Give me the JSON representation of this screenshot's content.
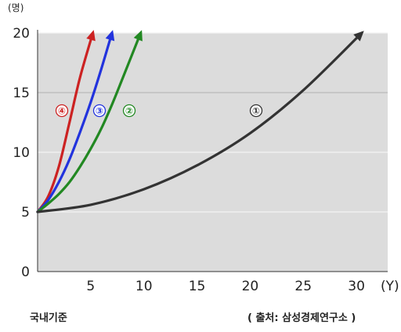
{
  "chart_data": {
    "type": "line",
    "ylabel": "(명)",
    "xlabel": "(Y)",
    "xlim": [
      0,
      30
    ],
    "ylim": [
      0,
      20
    ],
    "x_ticks": [
      "5",
      "10",
      "15",
      "20",
      "25",
      "30"
    ],
    "y_ticks": [
      "0",
      "5",
      "10",
      "15",
      "20"
    ],
    "grid": true,
    "series": [
      {
        "name": "④",
        "color": "#cc2222",
        "x": [
          0,
          1,
          2,
          3,
          4,
          5.2
        ],
        "y": [
          5,
          6.3,
          8.8,
          12.5,
          16.3,
          20
        ]
      },
      {
        "name": "③",
        "color": "#2233dd",
        "x": [
          0,
          1,
          2,
          3,
          4,
          5,
          6,
          7
        ],
        "y": [
          5,
          6.0,
          7.5,
          9.4,
          11.7,
          14.2,
          17,
          20
        ]
      },
      {
        "name": "②",
        "color": "#228822",
        "x": [
          0,
          1,
          2,
          3,
          4,
          5,
          6,
          7,
          8,
          9.7
        ],
        "y": [
          5,
          5.7,
          6.5,
          7.5,
          8.8,
          10.3,
          12,
          14,
          16.2,
          20
        ]
      },
      {
        "name": "①",
        "color": "#333333",
        "x": [
          0,
          5,
          10,
          15,
          20,
          25,
          30.5
        ],
        "y": [
          5,
          5.6,
          6.9,
          8.9,
          11.6,
          15.2,
          20
        ]
      }
    ],
    "footnote_left": "국내기준",
    "source": "( 출처: 삼성경제연구소 )"
  }
}
